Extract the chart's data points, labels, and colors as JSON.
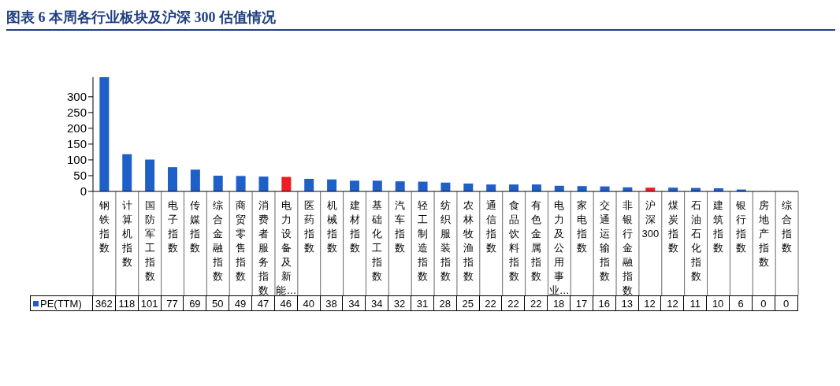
{
  "chart_data": {
    "type": "bar",
    "title": "图表 6 本周各行业板块及沪深 300 估值情况",
    "categories": [
      "钢铁指数",
      "计算机指数",
      "国防军工指数",
      "电子指数",
      "传媒指数",
      "综合金融指数",
      "商贸零售指数",
      "消费者服务指数",
      "电力设备及新能…",
      "医药指数",
      "机械指数",
      "建材指数",
      "基础化工指数",
      "汽车指数",
      "轻工制造指数",
      "纺织服装指数",
      "农林牧渔指数",
      "通信指数",
      "食品饮料指数",
      "有色金属指数",
      "电力及公用事业…",
      "家电指数",
      "交通运输指数",
      "非银行金融指数",
      "沪深300",
      "煤炭指数",
      "石油石化指数",
      "建筑指数",
      "银行指数",
      "房地产指数",
      "综合指数"
    ],
    "series": [
      {
        "name": "PE(TTM)",
        "color": "#1f5fc8",
        "values": [
          362,
          118,
          101,
          77,
          69,
          50,
          49,
          47,
          46,
          40,
          38,
          34,
          34,
          32,
          31,
          28,
          25,
          22,
          22,
          22,
          18,
          17,
          16,
          13,
          12,
          12,
          11,
          10,
          6,
          0,
          0
        ],
        "colors": [
          "#1f5fc8",
          "#1f5fc8",
          "#1f5fc8",
          "#1f5fc8",
          "#1f5fc8",
          "#1f5fc8",
          "#1f5fc8",
          "#1f5fc8",
          "#ee1c25",
          "#1f5fc8",
          "#1f5fc8",
          "#1f5fc8",
          "#1f5fc8",
          "#1f5fc8",
          "#1f5fc8",
          "#1f5fc8",
          "#1f5fc8",
          "#1f5fc8",
          "#1f5fc8",
          "#1f5fc8",
          "#1f5fc8",
          "#1f5fc8",
          "#1f5fc8",
          "#1f5fc8",
          "#ee1c25",
          "#1f5fc8",
          "#1f5fc8",
          "#1f5fc8",
          "#1f5fc8",
          "#1f5fc8",
          "#1f5fc8"
        ]
      }
    ],
    "ylim": [
      0,
      362
    ],
    "yticks": [
      0,
      50,
      100,
      150,
      200,
      250,
      300
    ],
    "grid": false,
    "legend": "bottom",
    "data_labels": true
  }
}
